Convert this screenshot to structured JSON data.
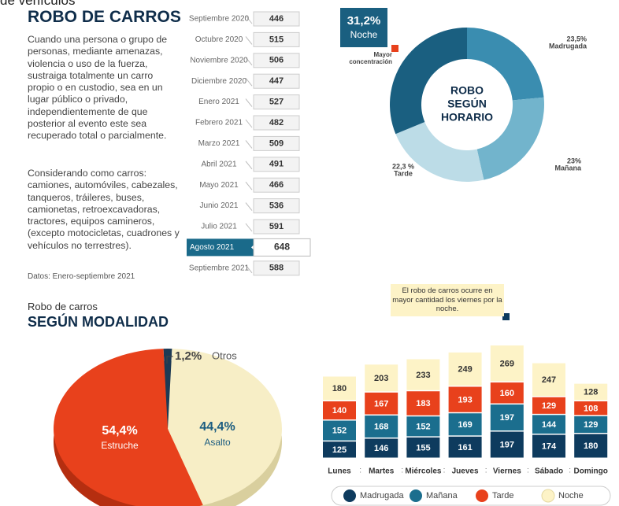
{
  "header": {
    "cut_title": "de vehículos",
    "title": "ROBO DE CARROS",
    "paragraphs": [
      "Cuando una persona o grupo de personas, mediante amenazas, violencia o uso de la fuerza, sustraiga totalmente un carro propio o en custodio, sea en un lugar público o privado, independientemente de que posterior al evento este sea recuperado total o parcialmente.",
      "Considerando como carros: camiones, automóviles, cabezales, tanqueros, tráileres, buses, camionetas, retroexcavadoras, tractores, equipos camineros, (excepto motocicletas, cuadrones y vehículos no terrestres)."
    ],
    "source": "Datos: Enero-septiembre 2021"
  },
  "monthly": {
    "categories": [
      "Septiembre 2020",
      "Octubre 2020",
      "Noviembre 2020",
      "Diciembre 2020",
      "Enero 2021",
      "Febrero 2021",
      "Marzo 2021",
      "Abril 2021",
      "Mayo 2021",
      "Junio 2021",
      "Julio 2021",
      "Agosto 2021",
      "Septiembre 2021"
    ],
    "values": [
      446,
      515,
      506,
      447,
      527,
      482,
      509,
      491,
      466,
      536,
      591,
      648,
      588
    ],
    "highlight": "Agosto 2021",
    "highlight_color": "#1a6a8a"
  },
  "chart_data": [
    {
      "type": "donut",
      "title": [
        "ROBO",
        "SEGÚN",
        "HORARIO"
      ],
      "categories": [
        "Madrugada",
        "Mañana",
        "Tarde",
        "Noche"
      ],
      "values": [
        23.5,
        23,
        22.3,
        31.2
      ],
      "value_labels": [
        "23,5%",
        "23%",
        "22,3 %",
        "31,2%"
      ],
      "colors": [
        "#3a8db0",
        "#72b4cc",
        "#bcdce7",
        "#1a5f80"
      ],
      "annotation": "Mayor concentración"
    },
    {
      "type": "pie",
      "subtitle": "Robo de carros",
      "title": "SEGÚN MODALIDAD",
      "categories": [
        "Otros",
        "Asalto",
        "Estruche"
      ],
      "values": [
        1.2,
        44.4,
        54.4
      ],
      "value_labels": [
        "1,2%",
        "44,4%",
        "54,4%"
      ],
      "colors": [
        "#1d3a55",
        "#f7eec6",
        "#e8411c"
      ]
    },
    {
      "type": "stacked_bar",
      "categories": [
        "Lunes",
        "Martes",
        "Miércoles",
        "Jueves",
        "Viernes",
        "Sábado",
        "Domingo"
      ],
      "series": [
        {
          "name": "Madrugada",
          "color": "#0e3b5e",
          "values": [
            125,
            146,
            155,
            161,
            197,
            174,
            180
          ]
        },
        {
          "name": "Mañana",
          "color": "#1b6e8e",
          "values": [
            152,
            168,
            152,
            169,
            197,
            144,
            129
          ]
        },
        {
          "name": "Tarde",
          "color": "#e8411c",
          "values": [
            140,
            167,
            183,
            193,
            160,
            129,
            108
          ]
        },
        {
          "name": "Noche",
          "color": "#fdf3c7",
          "values": [
            180,
            203,
            233,
            249,
            269,
            247,
            128
          ]
        }
      ],
      "annotation": "El robo de carros ocurre en mayor cantidad los viernes por la noche."
    }
  ]
}
